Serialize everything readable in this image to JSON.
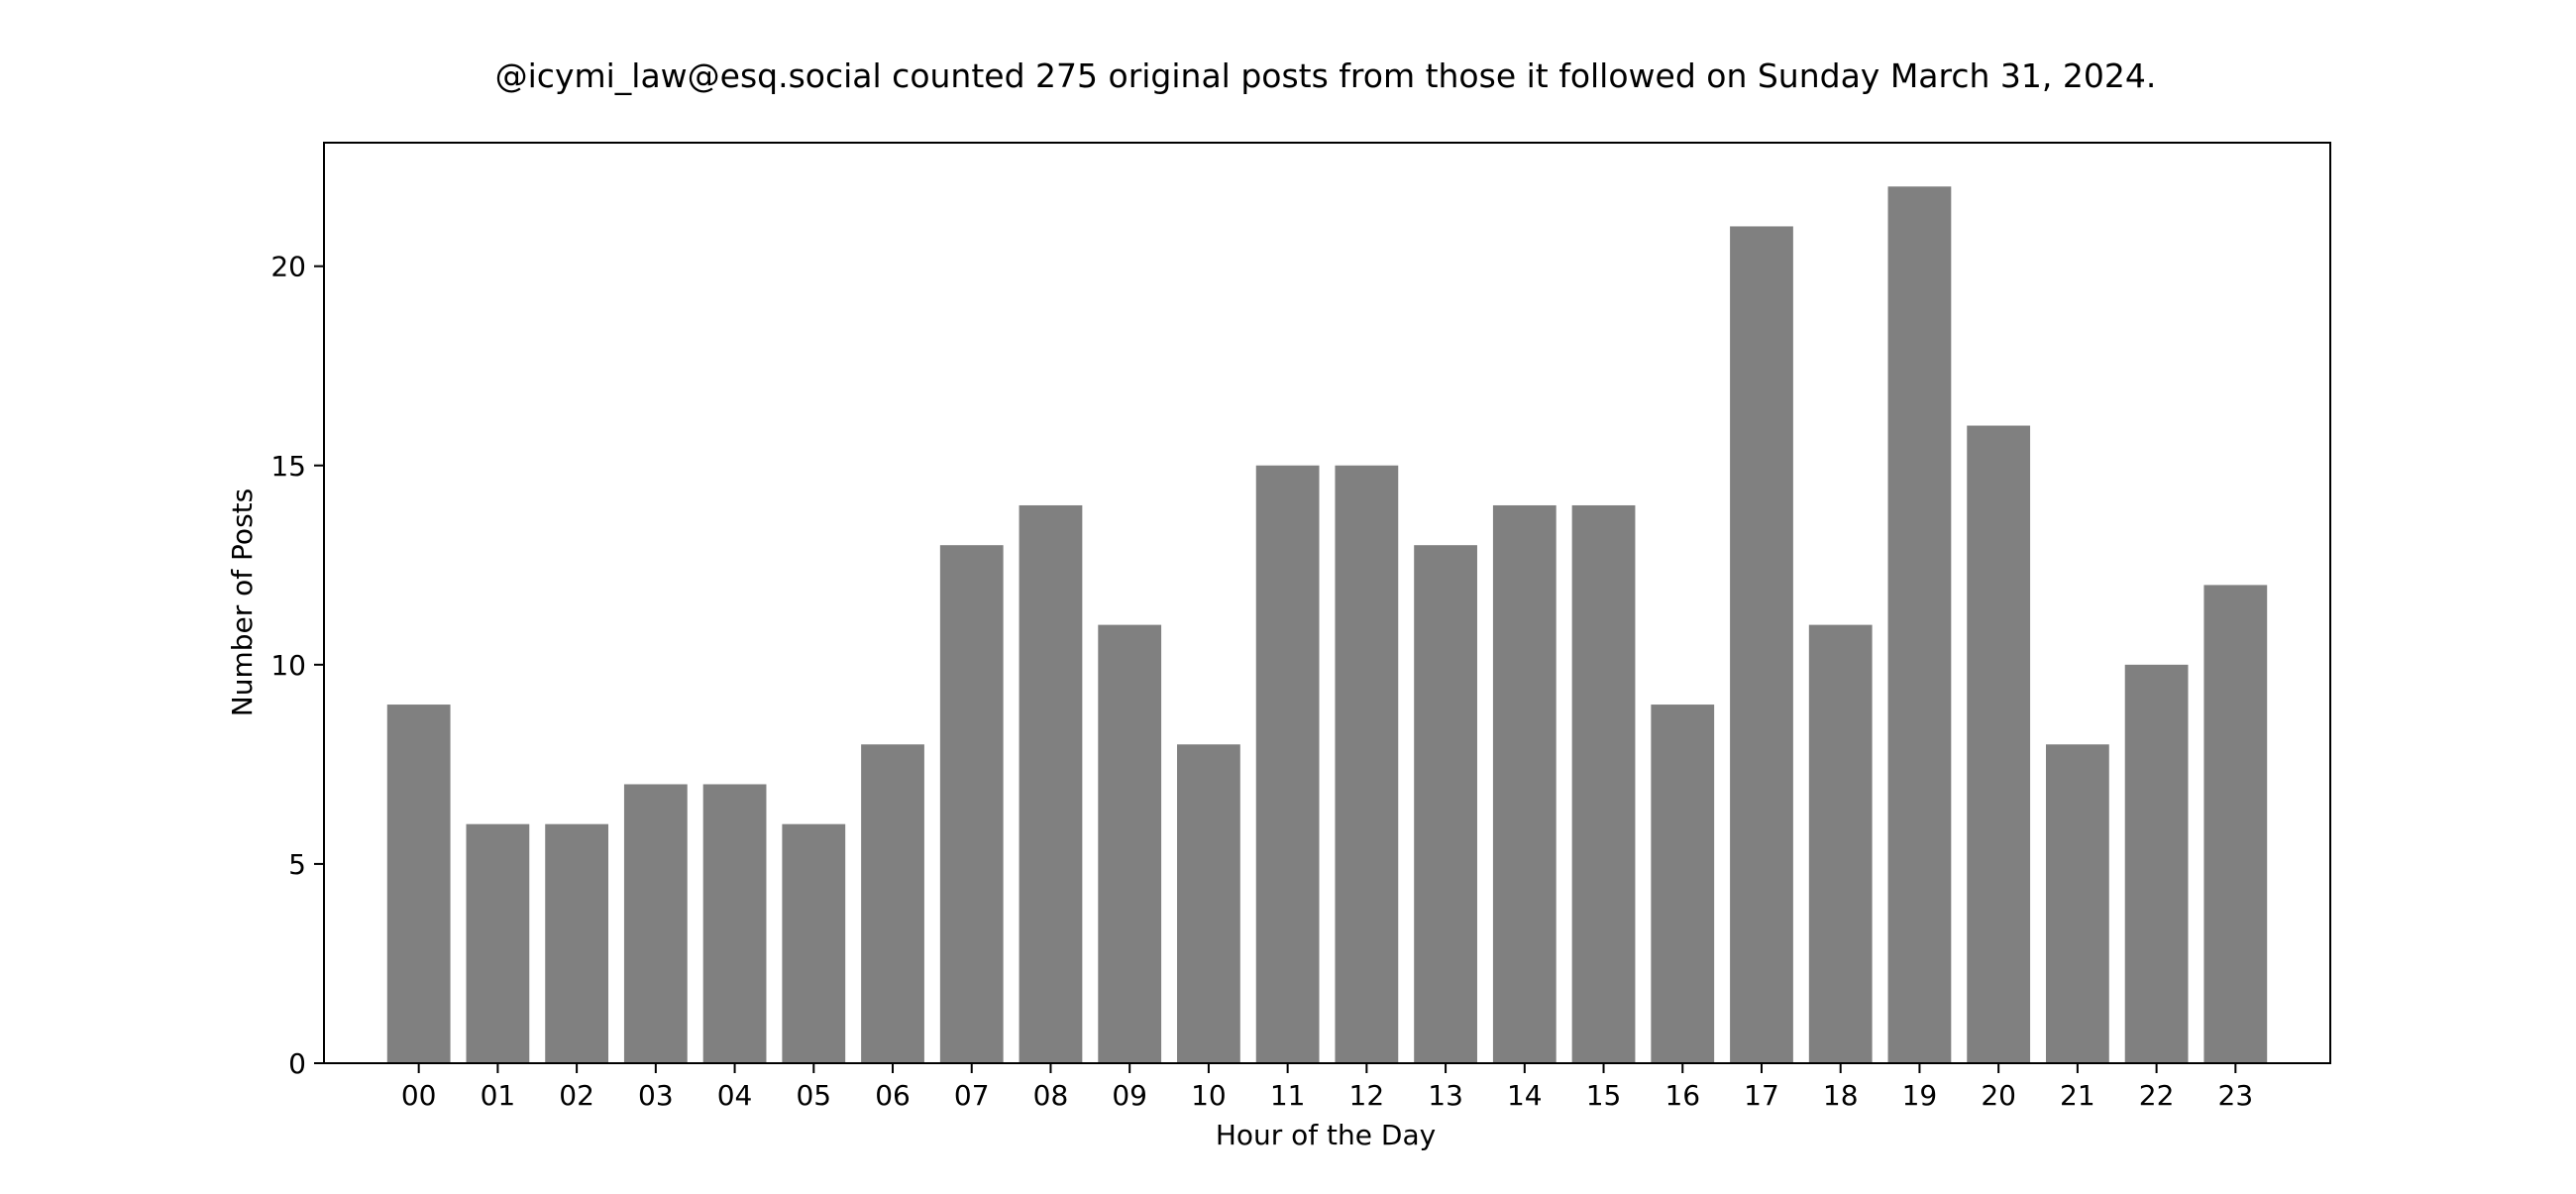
{
  "chart_data": {
    "type": "bar",
    "title": "@icymi_law@esq.social counted 275 original posts from those it followed on Sunday March 31, 2024.",
    "xlabel": "Hour of the Day",
    "ylabel": "Number of Posts",
    "categories": [
      "00",
      "01",
      "02",
      "03",
      "04",
      "05",
      "06",
      "07",
      "08",
      "09",
      "10",
      "11",
      "12",
      "13",
      "14",
      "15",
      "16",
      "17",
      "18",
      "19",
      "20",
      "21",
      "22",
      "23"
    ],
    "values": [
      9,
      6,
      6,
      7,
      7,
      6,
      8,
      13,
      14,
      11,
      8,
      15,
      15,
      13,
      14,
      14,
      9,
      21,
      11,
      22,
      16,
      8,
      10,
      12
    ],
    "yticks": [
      0,
      5,
      10,
      15,
      20
    ],
    "ylim": [
      0,
      23.1
    ],
    "grid": false,
    "bar_color": "#808080"
  }
}
